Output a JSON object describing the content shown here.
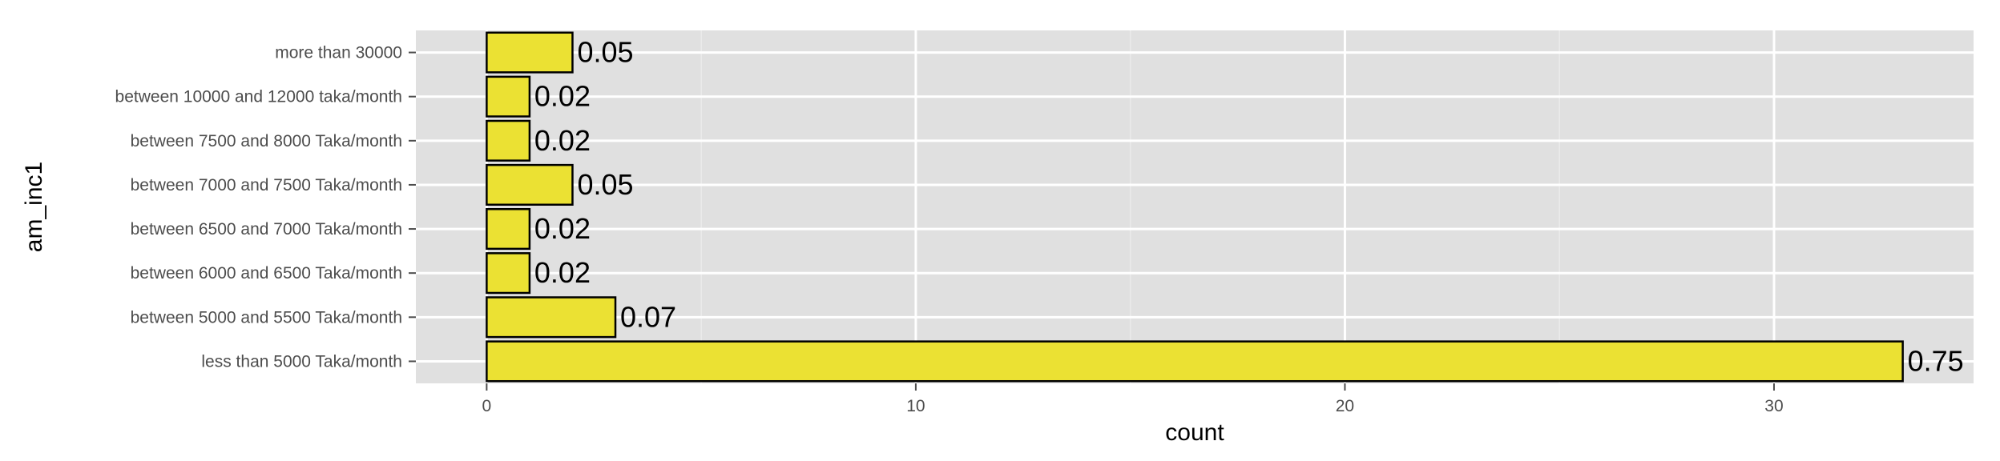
{
  "chart_data": {
    "type": "bar",
    "orientation": "horizontal",
    "categories": [
      "less than 5000 Taka/month",
      "between 5000 and 5500 Taka/month",
      "between 6000 and 6500 Taka/month",
      "between 6500 and 7000 Taka/month",
      "between 7000 and 7500 Taka/month",
      "between 7500 and 8000 Taka/month",
      "between 10000 and 12000 taka/month",
      "more than 30000"
    ],
    "values": [
      33,
      3,
      1,
      1,
      2,
      1,
      1,
      2
    ],
    "labels": [
      "0.75",
      "0.07",
      "0.02",
      "0.02",
      "0.05",
      "0.02",
      "0.02",
      "0.05"
    ],
    "xlabel": "count",
    "ylabel": "am_inc1",
    "xlim": [
      -1.65,
      34.65
    ],
    "xticks": [
      0,
      10,
      20,
      30
    ],
    "grid": true,
    "bar_fill": "#ebe133",
    "bar_outline": "#000000",
    "panel_background": "#e0e0e0"
  }
}
